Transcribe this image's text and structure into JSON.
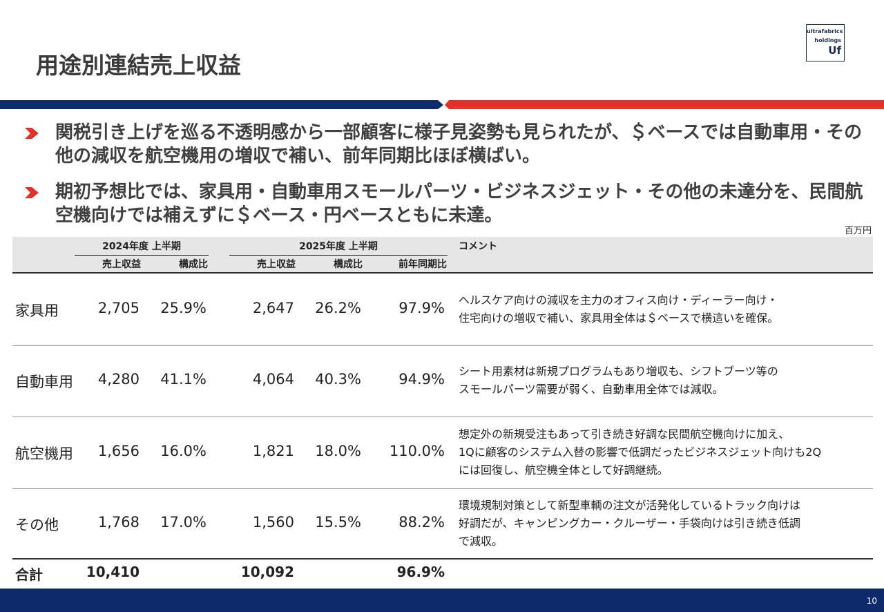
{
  "header": {
    "title": "用途別連結売上収益",
    "logo": [
      "ultrafabrics",
      "holdings",
      "Uf"
    ]
  },
  "bullets": [
    "関税引き上げを巡る不透明感から一部顧客に様子見姿勢も見られたが、＄ベースでは自動車用・その他の減収を航空機用の増収で補い、前年同期比ほぼ横ばい。",
    "期初予想比では、家具用・自動車用スモールパーツ・ビジネスジェット・その他の未達分を、民間航空機向けでは補えずに＄ベース・円ベースともに未達。"
  ],
  "unit": "百万円",
  "table": {
    "group_headers": [
      "2024年度 上半期",
      "2025年度 上半期",
      "コメント"
    ],
    "sub_headers": [
      "売上収益",
      "構成比",
      "売上収益",
      "構成比",
      "前年同期比"
    ],
    "rows": [
      {
        "label": "家具用",
        "cells": [
          "2,705",
          "25.9%",
          "2,647",
          "26.2%",
          "97.9%"
        ],
        "comment": [
          "ヘルスケア向けの減収を主力のオフィス向け・ディーラー向け・",
          "住宅向けの増収で補い、家具用全体は＄ベースで横這いを確保。"
        ]
      },
      {
        "label": "自動車用",
        "cells": [
          "4,280",
          "41.1%",
          "4,064",
          "40.3%",
          "94.9%"
        ],
        "comment": [
          "シート用素材は新規プログラムもあり増収も、シフトブーツ等の",
          "スモールパーツ需要が弱く、自動車用全体では減収。"
        ]
      },
      {
        "label": "航空機用",
        "cells": [
          "1,656",
          "16.0%",
          "1,821",
          "18.0%",
          "110.0%"
        ],
        "comment": [
          "想定外の新規受注もあって引き続き好調な民間航空機向けに加え、",
          "1Qに顧客のシステム入替の影響で低調だったビジネスジェット向けも2Q",
          "には回復し、航空機全体として好調継続。"
        ]
      },
      {
        "label": "その他",
        "cells": [
          "1,768",
          "17.0%",
          "1,560",
          "15.5%",
          "88.2%"
        ],
        "comment": [
          "環境規制対策として新型車輌の注文が活発化しているトラック向けは",
          "好調だが、キャンピングカー・クルーザー・手袋向けは引き続き低調",
          "で減収。"
        ]
      }
    ],
    "total": {
      "label": "合計",
      "sales_2024": "10,410",
      "sales_2025": "10,092",
      "yoy": "96.9%"
    }
  },
  "footer": {
    "page": "10"
  }
}
